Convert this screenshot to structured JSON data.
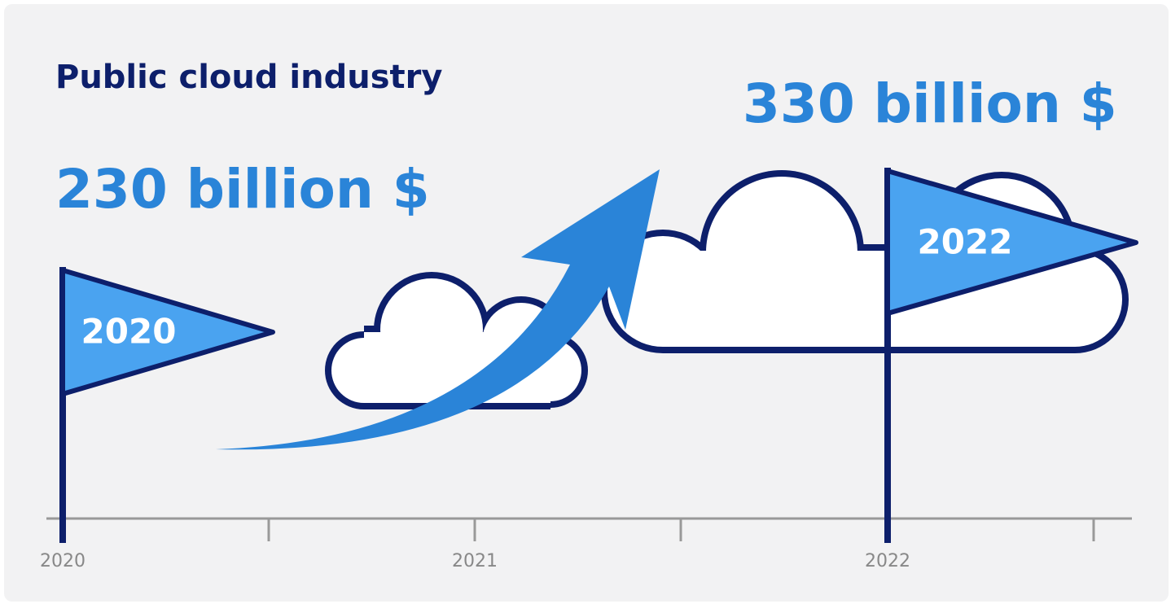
{
  "title": "Public cloud industry",
  "amounts": [
    "230 billion $",
    "330 billion $"
  ],
  "flags": [
    "2020",
    "2022"
  ],
  "timeline": {
    "labels": [
      "2020",
      "2021",
      "2022"
    ]
  }
}
